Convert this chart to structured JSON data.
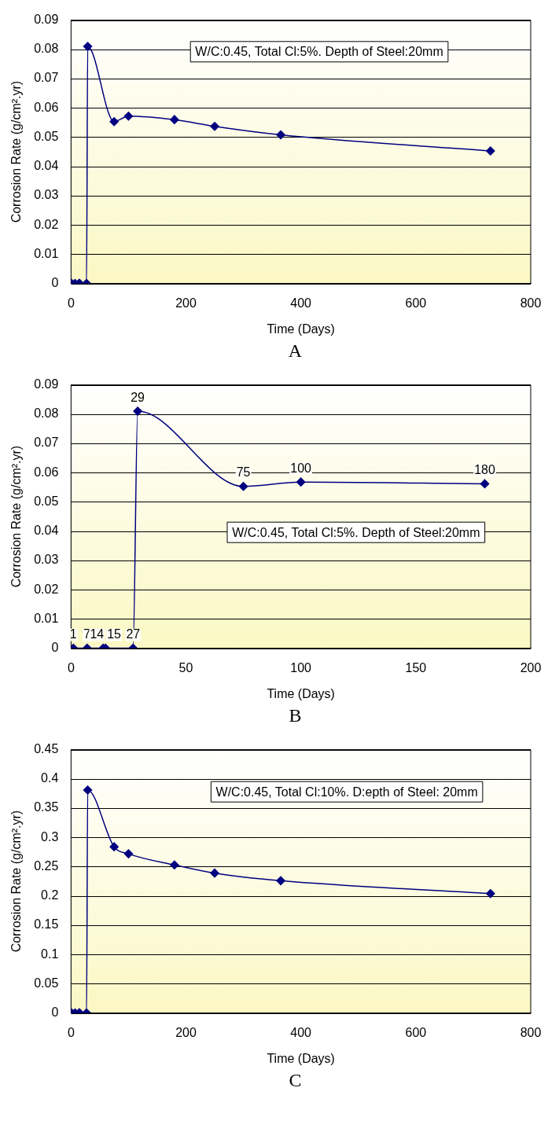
{
  "chart_data": [
    {
      "type": "line",
      "xlabel": "Time (Days)",
      "ylabel": "Corrosion Rate (g/cm².yr)",
      "x": [
        1,
        7,
        14,
        15,
        27,
        29,
        75,
        100,
        180,
        250,
        365,
        730
      ],
      "series": [
        {
          "color": "#000080",
          "values": [
            0,
            0,
            0,
            0,
            0,
            0.081,
            0.0553,
            0.0572,
            0.056,
            0.0537,
            0.0508,
            0.0453
          ]
        }
      ],
      "xlim": [
        0,
        800
      ],
      "xticks": [
        0,
        200,
        400,
        600,
        800
      ],
      "ylim": [
        0,
        0.09
      ],
      "yticks": [
        0,
        0.01,
        0.02,
        0.03,
        0.04,
        0.05,
        0.06,
        0.07,
        0.08,
        0.09
      ],
      "grid": "y",
      "marker": "diamond",
      "line_style": "solid",
      "annotations": [
        "W/C:0.45, Total Cl:5%. Depth of Steel:20mm",
        "A"
      ]
    },
    {
      "type": "line",
      "xlabel": "Time (Days)",
      "ylabel": "Corrosion Rate (g/cm².yr)",
      "x": [
        1,
        7,
        14,
        15,
        27,
        29,
        75,
        100,
        180
      ],
      "series": [
        {
          "color": "#000080",
          "values": [
            0,
            0,
            0,
            0,
            0,
            0.081,
            0.0553,
            0.0568,
            0.0562
          ]
        }
      ],
      "xlim": [
        0,
        200
      ],
      "xticks": [
        0,
        50,
        100,
        150,
        200
      ],
      "ylim": [
        0,
        0.09
      ],
      "yticks": [
        0,
        0.01,
        0.02,
        0.03,
        0.04,
        0.05,
        0.06,
        0.07,
        0.08,
        0.09
      ],
      "grid": "y",
      "marker": "diamond",
      "line_style": "solid",
      "annotations": [
        "W/C:0.45, Total Cl:5%. Depth of Steel:20mm",
        "B",
        {
          "text": "1",
          "x": 1,
          "y": 0
        },
        {
          "text": "7",
          "x": 7,
          "y": 0
        },
        {
          "text": "14",
          "x": 14,
          "y": 0
        },
        {
          "text": "15",
          "x": 15,
          "y": 0
        },
        {
          "text": "27",
          "x": 27,
          "y": 0
        },
        {
          "text": "29",
          "x": 29,
          "y": 0.081
        },
        {
          "text": "75",
          "x": 75,
          "y": 0.0553
        },
        {
          "text": "100",
          "x": 100,
          "y": 0.0568
        },
        {
          "text": "180",
          "x": 180,
          "y": 0.0562
        }
      ]
    },
    {
      "type": "line",
      "xlabel": "Time (Days)",
      "ylabel": "Corrosion Rate (g/cm².yr)",
      "x": [
        1,
        7,
        14,
        15,
        27,
        29,
        75,
        100,
        180,
        250,
        365,
        730
      ],
      "series": [
        {
          "color": "#000080",
          "values": [
            0,
            0,
            0,
            0,
            0,
            0.381,
            0.284,
            0.272,
            0.253,
            0.239,
            0.226,
            0.204
          ]
        }
      ],
      "xlim": [
        0,
        800
      ],
      "xticks": [
        0,
        200,
        400,
        600,
        800
      ],
      "ylim": [
        0,
        0.45
      ],
      "yticks": [
        0,
        0.05,
        0.1,
        0.15,
        0.2,
        0.25,
        0.3,
        0.35,
        0.4,
        0.45
      ],
      "grid": "y",
      "marker": "diamond",
      "line_style": "solid",
      "annotations": [
        "W/C:0.45, Total Cl:10%. D:epth of Steel: 20mm",
        "C"
      ]
    }
  ]
}
